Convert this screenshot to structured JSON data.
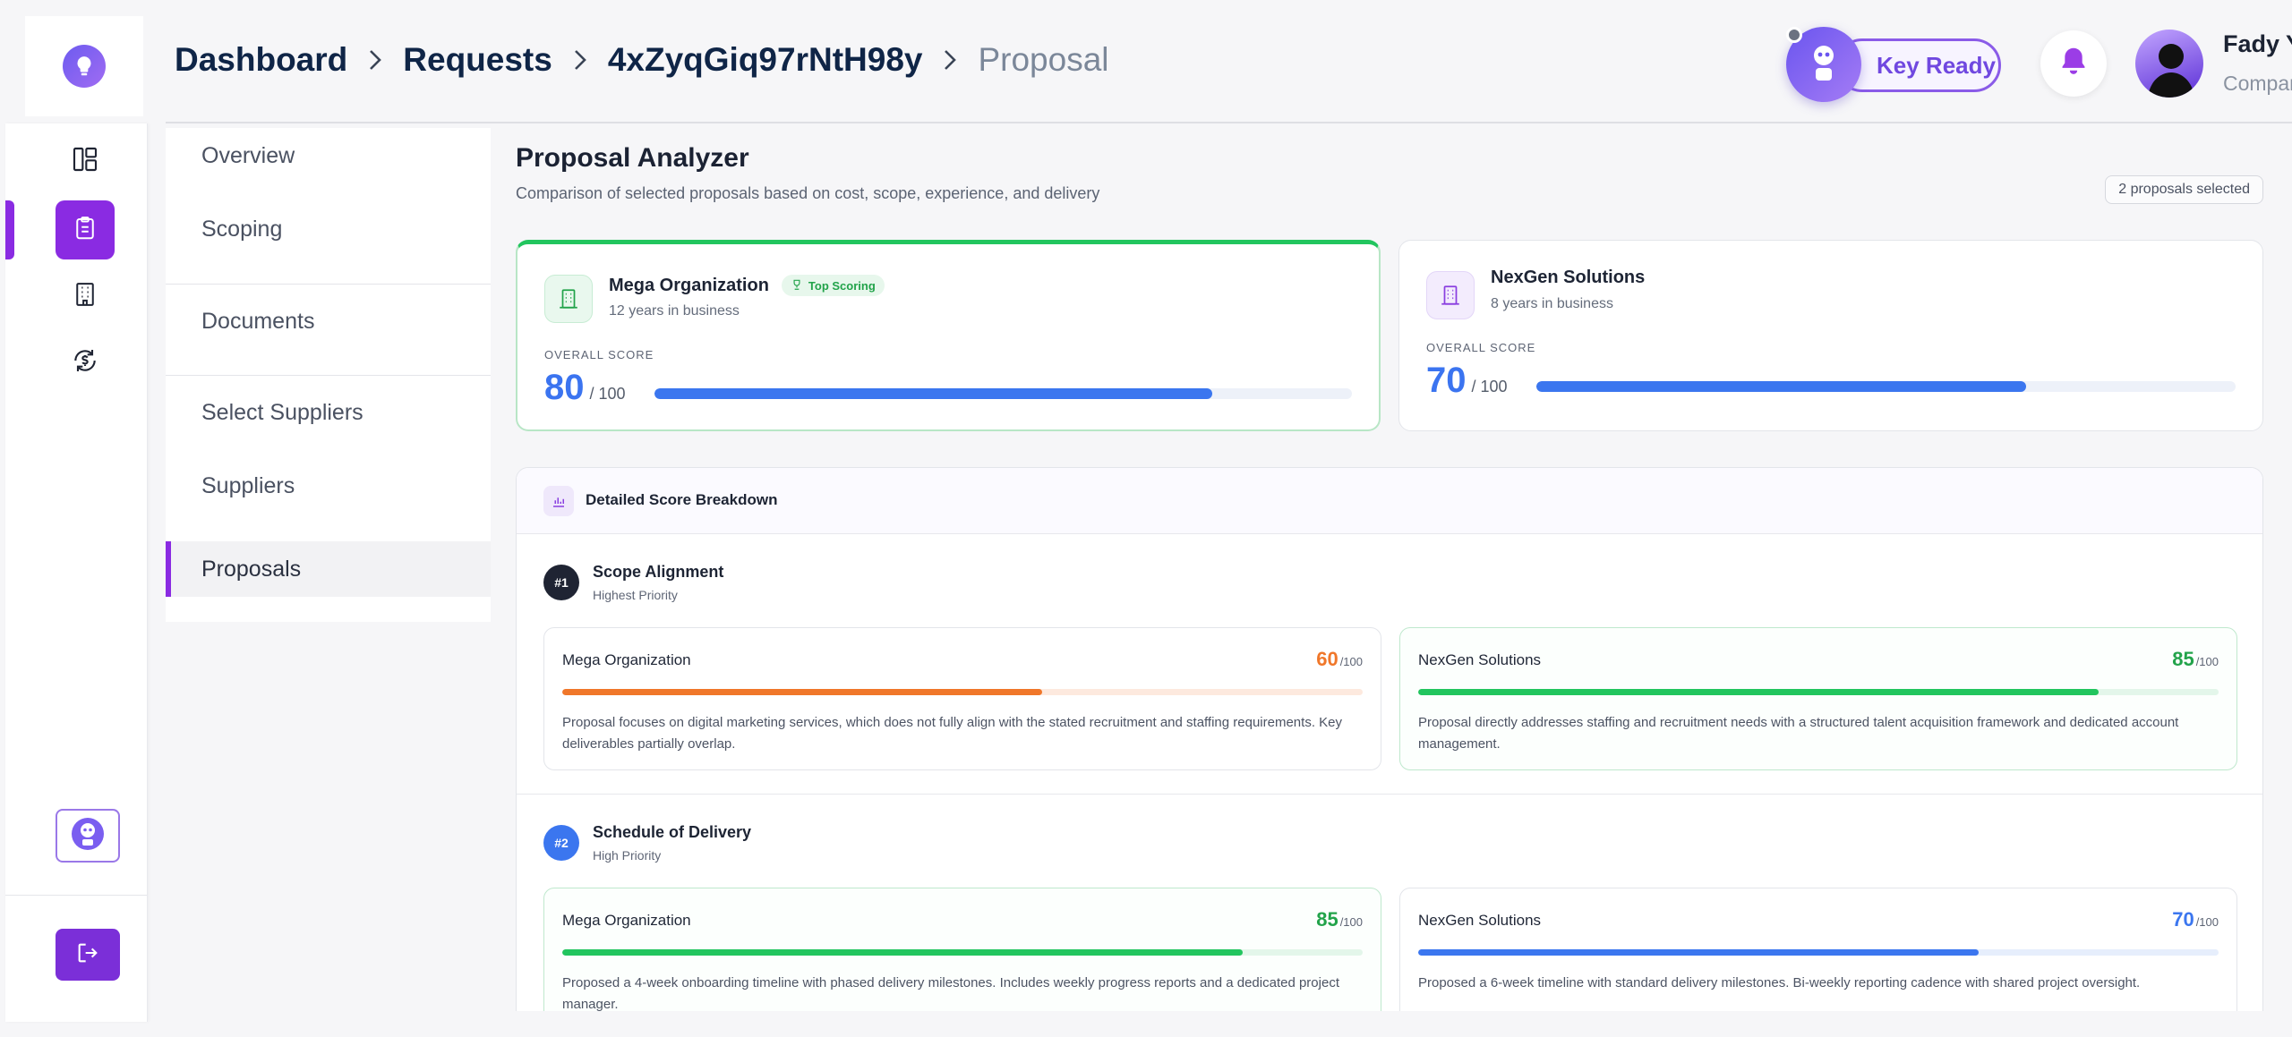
{
  "header": {
    "breadcrumb": [
      "Dashboard",
      "Requests",
      "4xZyqGiq97rNtH98y",
      "Proposal"
    ],
    "key_ready_label": "Key Ready",
    "user": {
      "name": "Fady Younan",
      "company": "Company name"
    }
  },
  "sub_nav": {
    "items": [
      "Overview",
      "Scoping",
      "Documents",
      "Select Suppliers",
      "Suppliers",
      "Proposals"
    ],
    "active": "Proposals"
  },
  "main": {
    "title": "Proposal Analyzer",
    "subtitle": "Comparison of selected proposals based on cost, scope, experience, and delivery",
    "selected_badge": "2 proposals selected",
    "overall_label": "OVERALL SCORE",
    "score_suffix": "/ 100",
    "suppliers": [
      {
        "name": "Mega Organization",
        "years": "12 years in business",
        "score": "80",
        "score_value": 80,
        "badge": "Top Scoring"
      },
      {
        "name": "NexGen Solutions",
        "years": "8 years in business",
        "score": "70",
        "score_value": 70
      }
    ],
    "breakdown": {
      "title": "Detailed Score Breakdown",
      "out_of": "/100",
      "criteria": [
        {
          "rank": "#1",
          "title": "Scope Alignment",
          "priority": "Highest Priority",
          "scores": [
            {
              "supplier": "Mega Organization",
              "value": "60",
              "value_num": 60,
              "color": "#f0772a",
              "desc": "Proposal focuses on digital marketing services, which does not fully align with the stated recruitment and staffing requirements. Key deliverables partially overlap."
            },
            {
              "supplier": "NexGen Solutions",
              "value": "85",
              "value_num": 85,
              "color": "#22c55e",
              "desc": "Proposal directly addresses staffing and recruitment needs with a structured talent acquisition framework and dedicated account management."
            }
          ]
        },
        {
          "rank": "#2",
          "title": "Schedule of Delivery",
          "priority": "High Priority",
          "scores": [
            {
              "supplier": "Mega Organization",
              "value": "85",
              "value_num": 85,
              "color": "#22c55e",
              "desc": "Proposed a 4-week onboarding timeline with phased delivery milestones. Includes weekly progress reports and a dedicated project manager."
            },
            {
              "supplier": "NexGen Solutions",
              "value": "70",
              "value_num": 70,
              "color": "#3b76ef",
              "desc": "Proposed a 6-week timeline with standard delivery milestones. Bi-weekly reporting cadence with shared project oversight."
            }
          ]
        }
      ]
    }
  },
  "colors": {
    "brand_purple": "#8a2be2",
    "score_blue": "#3b76ef",
    "green": "#22c55e",
    "orange": "#f0772a",
    "breadcrumb_navy": "#0f2547"
  },
  "icons": {
    "logo": "lightbulb-icon",
    "sidebar": [
      "dashboard-icon",
      "clipboard-icon",
      "building-icon",
      "currency-exchange-icon"
    ],
    "assistant": "robot-icon",
    "logout": "logout-icon",
    "notifications": "bell-icon",
    "supplier": "building-icon",
    "breakdown": "bar-chart-icon",
    "top_scoring": "trophy-icon"
  }
}
